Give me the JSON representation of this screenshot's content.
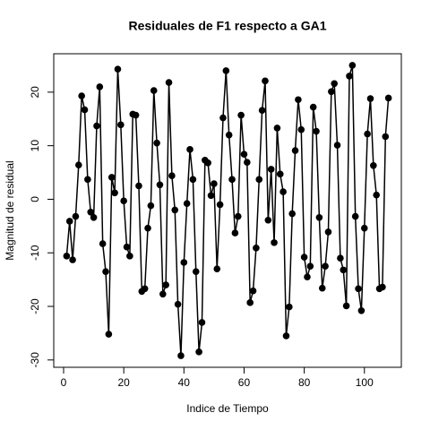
{
  "chart_data": {
    "type": "line",
    "title": "Residuales de F1 respecto a GA1",
    "x_label": "Indice de Tiempo",
    "y_label": "Magnitud de residual",
    "x": [
      1,
      2,
      3,
      4,
      5,
      6,
      7,
      8,
      9,
      10,
      11,
      12,
      13,
      14,
      15,
      16,
      17,
      18,
      19,
      20,
      21,
      22,
      23,
      24,
      25,
      26,
      27,
      28,
      29,
      30,
      31,
      32,
      33,
      34,
      35,
      36,
      37,
      38,
      39,
      40,
      41,
      42,
      43,
      44,
      45,
      46,
      47,
      48,
      49,
      50,
      51,
      52,
      53,
      54,
      55,
      56,
      57,
      58,
      59,
      60,
      61,
      62,
      63,
      64,
      65,
      66,
      67,
      68,
      69,
      70,
      71,
      72,
      73,
      74,
      75,
      76,
      77,
      78,
      79,
      80,
      81,
      82,
      83,
      84,
      85,
      86,
      87,
      88,
      89,
      90,
      91,
      92,
      93,
      94,
      95,
      96,
      97,
      98,
      99,
      100,
      101,
      102,
      103,
      104,
      105,
      106,
      107,
      108
    ],
    "series": [
      {
        "color": "#000000",
        "values": [
          -10.6,
          -4.1,
          -11.3,
          -3.2,
          6.4,
          19.3,
          16.7,
          3.7,
          -2.4,
          -3.4,
          13.7,
          21.0,
          -8.3,
          -13.5,
          -25.2,
          4.1,
          1.2,
          24.3,
          13.9,
          -0.3,
          -8.9,
          -10.6,
          15.9,
          15.7,
          2.5,
          -17.2,
          -16.7,
          -5.4,
          -1.2,
          20.3,
          10.5,
          2.7,
          -17.7,
          -16.0,
          21.8,
          4.4,
          -2.0,
          -19.6,
          -29.2,
          -11.8,
          -0.8,
          9.3,
          3.7,
          -13.5,
          -28.5,
          -23.0,
          7.3,
          6.8,
          0.7,
          2.9,
          -13.0,
          -1.0,
          15.2,
          24.0,
          12.0,
          3.7,
          -6.3,
          -3.2,
          15.7,
          8.4,
          6.9,
          -19.3,
          -17.1,
          -9.1,
          3.7,
          16.6,
          22.1,
          -3.9,
          5.6,
          -8.1,
          13.3,
          4.7,
          1.4,
          -25.5,
          -20.1,
          -2.7,
          9.1,
          18.6,
          13.0,
          -10.8,
          -14.5,
          -12.5,
          17.2,
          12.7,
          -3.4,
          -16.6,
          -12.5,
          -6.1,
          20.1,
          21.6,
          10.1,
          -11.0,
          -13.2,
          -19.9,
          23.0,
          25.0,
          -3.2,
          -16.7,
          -20.8,
          -5.4,
          12.2,
          18.8,
          6.3,
          0.8,
          -16.7,
          -16.4,
          11.7,
          18.9
        ]
      }
    ],
    "xlim": [
      -3.28,
      112.28
    ],
    "ylim": [
      -31.37,
      27.17
    ],
    "xticks": [
      0,
      20,
      40,
      60,
      80,
      100
    ],
    "yticks": [
      -30,
      -20,
      -10,
      0,
      10,
      20
    ]
  }
}
